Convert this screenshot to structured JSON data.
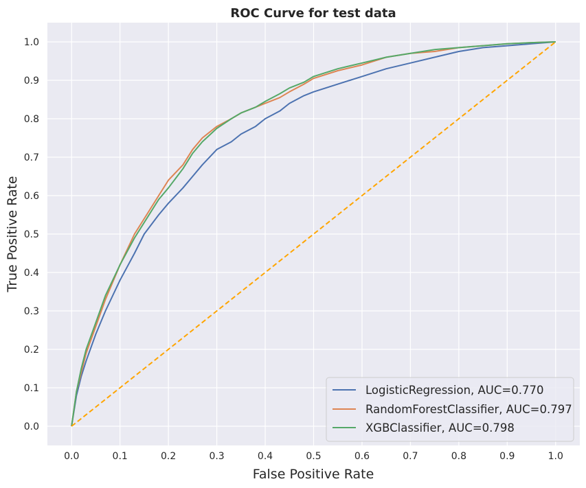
{
  "chart_data": {
    "type": "line",
    "title": "ROC Curve for test data",
    "xlabel": "False Positive Rate",
    "ylabel": "True Positive Rate",
    "xlim": [
      -0.05,
      1.05
    ],
    "ylim": [
      -0.05,
      1.05
    ],
    "xticks": [
      0.0,
      0.1,
      0.2,
      0.3,
      0.4,
      0.5,
      0.6,
      0.7,
      0.8,
      0.9,
      1.0
    ],
    "yticks": [
      0.0,
      0.1,
      0.2,
      0.3,
      0.4,
      0.5,
      0.6,
      0.7,
      0.8,
      0.9,
      1.0
    ],
    "xtick_labels": [
      "0.0",
      "0.1",
      "0.2",
      "0.3",
      "0.4",
      "0.5",
      "0.6",
      "0.7",
      "0.8",
      "0.9",
      "1.0"
    ],
    "ytick_labels": [
      "0.0",
      "0.1",
      "0.2",
      "0.3",
      "0.4",
      "0.5",
      "0.6",
      "0.7",
      "0.8",
      "0.9",
      "1.0"
    ],
    "grid": true,
    "legend_position": "lower-right",
    "background_color": "#eaeaf2",
    "series": [
      {
        "name": "LogisticRegression, AUC=0.770",
        "color": "#4c72b0",
        "x": [
          0.0,
          0.01,
          0.02,
          0.03,
          0.05,
          0.07,
          0.1,
          0.13,
          0.15,
          0.18,
          0.2,
          0.23,
          0.25,
          0.27,
          0.3,
          0.33,
          0.35,
          0.38,
          0.4,
          0.43,
          0.45,
          0.48,
          0.5,
          0.55,
          0.6,
          0.65,
          0.7,
          0.75,
          0.8,
          0.85,
          0.9,
          0.95,
          1.0
        ],
        "y": [
          0.0,
          0.08,
          0.13,
          0.17,
          0.24,
          0.3,
          0.38,
          0.45,
          0.5,
          0.55,
          0.58,
          0.62,
          0.65,
          0.68,
          0.72,
          0.74,
          0.76,
          0.78,
          0.8,
          0.82,
          0.84,
          0.86,
          0.87,
          0.89,
          0.91,
          0.93,
          0.945,
          0.96,
          0.975,
          0.985,
          0.99,
          0.995,
          1.0
        ]
      },
      {
        "name": "RandomForestClassifier, AUC=0.797",
        "color": "#dd8452",
        "x": [
          0.0,
          0.01,
          0.02,
          0.03,
          0.05,
          0.07,
          0.1,
          0.13,
          0.15,
          0.18,
          0.2,
          0.23,
          0.25,
          0.27,
          0.3,
          0.33,
          0.35,
          0.38,
          0.4,
          0.43,
          0.45,
          0.48,
          0.5,
          0.55,
          0.6,
          0.65,
          0.7,
          0.75,
          0.8,
          0.85,
          0.9,
          0.95,
          1.0
        ],
        "y": [
          0.0,
          0.09,
          0.14,
          0.19,
          0.26,
          0.33,
          0.42,
          0.5,
          0.54,
          0.6,
          0.64,
          0.68,
          0.72,
          0.75,
          0.78,
          0.8,
          0.815,
          0.83,
          0.84,
          0.855,
          0.87,
          0.89,
          0.905,
          0.925,
          0.94,
          0.96,
          0.97,
          0.975,
          0.985,
          0.99,
          0.995,
          0.998,
          1.0
        ]
      },
      {
        "name": "XGBClassifier, AUC=0.798",
        "color": "#55a868",
        "x": [
          0.0,
          0.01,
          0.02,
          0.03,
          0.05,
          0.07,
          0.1,
          0.13,
          0.15,
          0.18,
          0.2,
          0.23,
          0.25,
          0.27,
          0.3,
          0.33,
          0.35,
          0.38,
          0.4,
          0.43,
          0.45,
          0.48,
          0.5,
          0.55,
          0.6,
          0.65,
          0.7,
          0.75,
          0.8,
          0.85,
          0.9,
          0.95,
          1.0
        ],
        "y": [
          0.0,
          0.09,
          0.15,
          0.2,
          0.27,
          0.34,
          0.42,
          0.49,
          0.53,
          0.59,
          0.62,
          0.67,
          0.71,
          0.74,
          0.775,
          0.8,
          0.815,
          0.83,
          0.845,
          0.865,
          0.88,
          0.895,
          0.91,
          0.93,
          0.945,
          0.96,
          0.97,
          0.98,
          0.985,
          0.99,
          0.995,
          0.998,
          1.0
        ]
      }
    ],
    "reference_line": {
      "name": "chance-line",
      "color": "#ffa500",
      "style": "dashed",
      "x": [
        0.0,
        1.0
      ],
      "y": [
        0.0,
        1.0
      ]
    }
  }
}
